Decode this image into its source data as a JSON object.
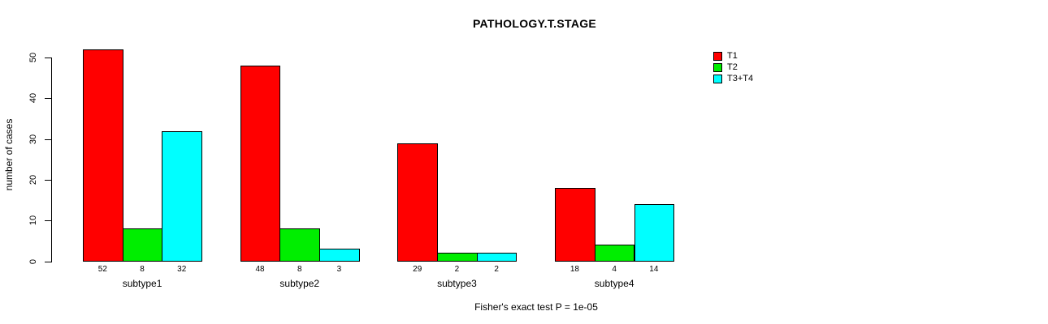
{
  "chart_data": {
    "type": "bar",
    "title": "PATHOLOGY.T.STAGE",
    "ylabel": "number of cases",
    "xlabel": "",
    "categories": [
      "subtype1",
      "subtype2",
      "subtype3",
      "subtype4"
    ],
    "series": [
      {
        "name": "T1",
        "color": "#ff0000",
        "values": [
          52,
          48,
          29,
          18
        ]
      },
      {
        "name": "T2",
        "color": "#00ee00",
        "values": [
          8,
          8,
          2,
          4
        ]
      },
      {
        "name": "T3+T4",
        "color": "#00ffff",
        "values": [
          32,
          3,
          2,
          14
        ]
      }
    ],
    "bar_value_labels": [
      [
        "52",
        "8",
        "32"
      ],
      [
        "48",
        "8",
        "3"
      ],
      [
        "29",
        "2",
        "2"
      ],
      [
        "18",
        "4",
        "14"
      ]
    ],
    "yticks": [
      0,
      10,
      20,
      30,
      40,
      50
    ],
    "ylim": [
      0,
      50
    ],
    "grid": false,
    "legend_position": "top-right",
    "legend_entries": [
      "T1",
      "T2",
      "T3+T4"
    ],
    "footer": "Fisher's exact test P = 1e-05"
  }
}
